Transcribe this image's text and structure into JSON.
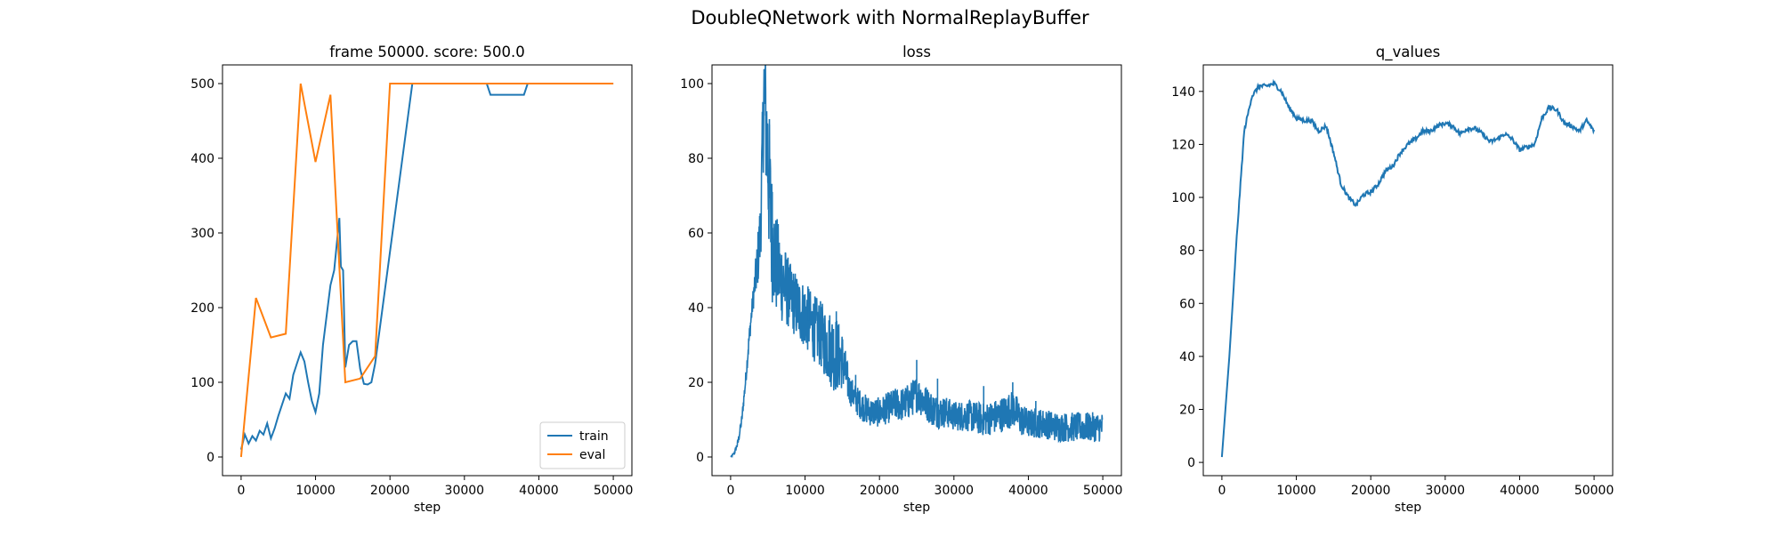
{
  "figure": {
    "suptitle": "DoubleQNetwork with NormalReplayBuffer"
  },
  "colors": {
    "train": "#1f77b4",
    "eval": "#ff7f0e",
    "loss": "#1f77b4",
    "q_values": "#1f77b4"
  },
  "chart_data": [
    {
      "type": "line",
      "title": "frame 50000. score: 500.0",
      "xlabel": "step",
      "ylabel": "",
      "xlim": [
        -2500,
        52500
      ],
      "ylim": [
        -25,
        525
      ],
      "xticks": [
        0,
        10000,
        20000,
        30000,
        40000,
        50000
      ],
      "yticks": [
        0,
        100,
        200,
        300,
        400,
        500
      ],
      "grid": false,
      "legend": {
        "placement": "lower-right"
      },
      "series": [
        {
          "name": "train",
          "color": "#1f77b4",
          "points": [
            [
              0,
              10
            ],
            [
              500,
              30
            ],
            [
              1000,
              18
            ],
            [
              1500,
              28
            ],
            [
              2000,
              22
            ],
            [
              2500,
              35
            ],
            [
              3000,
              30
            ],
            [
              3500,
              45
            ],
            [
              4000,
              25
            ],
            [
              4500,
              38
            ],
            [
              5000,
              55
            ],
            [
              5500,
              70
            ],
            [
              6000,
              85
            ],
            [
              6500,
              78
            ],
            [
              7000,
              110
            ],
            [
              7500,
              125
            ],
            [
              8000,
              140
            ],
            [
              8500,
              128
            ],
            [
              9000,
              100
            ],
            [
              9500,
              75
            ],
            [
              10000,
              60
            ],
            [
              10500,
              85
            ],
            [
              11000,
              150
            ],
            [
              11500,
              190
            ],
            [
              12000,
              230
            ],
            [
              12500,
              250
            ],
            [
              13000,
              300
            ],
            [
              13200,
              320
            ],
            [
              13400,
              255
            ],
            [
              13700,
              250
            ],
            [
              14000,
              120
            ],
            [
              14500,
              150
            ],
            [
              15000,
              155
            ],
            [
              15500,
              155
            ],
            [
              16000,
              118
            ],
            [
              16500,
              98
            ],
            [
              17000,
              97
            ],
            [
              17500,
              100
            ],
            [
              18000,
              125
            ],
            [
              23000,
              500
            ],
            [
              33000,
              500
            ],
            [
              33500,
              485
            ],
            [
              38000,
              485
            ],
            [
              38500,
              500
            ],
            [
              50000,
              500
            ]
          ]
        },
        {
          "name": "eval",
          "color": "#ff7f0e",
          "points": [
            [
              0,
              0
            ],
            [
              2000,
              213
            ],
            [
              4000,
              160
            ],
            [
              6000,
              165
            ],
            [
              8000,
              500
            ],
            [
              10000,
              395
            ],
            [
              12000,
              485
            ],
            [
              14000,
              100
            ],
            [
              16000,
              105
            ],
            [
              18000,
              135
            ],
            [
              20000,
              500
            ],
            [
              50000,
              500
            ]
          ]
        }
      ]
    },
    {
      "type": "line",
      "title": "loss",
      "xlabel": "step",
      "ylabel": "",
      "xlim": [
        -2500,
        52500
      ],
      "ylim": [
        -5,
        105
      ],
      "xticks": [
        0,
        10000,
        20000,
        30000,
        40000,
        50000
      ],
      "yticks": [
        0,
        20,
        40,
        60,
        80,
        100
      ],
      "grid": false,
      "series": [
        {
          "color": "#1f77b4",
          "points": [
            [
              0,
              0
            ],
            [
              500,
              1
            ],
            [
              1000,
              4
            ],
            [
              1500,
              10
            ],
            [
              2000,
              20
            ],
            [
              2500,
              32
            ],
            [
              3000,
              42
            ],
            [
              3500,
              50
            ],
            [
              4000,
              60
            ],
            [
              4500,
              99
            ],
            [
              5000,
              80
            ],
            [
              5500,
              60
            ],
            [
              6000,
              52
            ],
            [
              7000,
              47
            ],
            [
              8000,
              43
            ],
            [
              9000,
              40
            ],
            [
              10000,
              38
            ],
            [
              11000,
              35
            ],
            [
              12000,
              33
            ],
            [
              13000,
              30
            ],
            [
              14000,
              28
            ],
            [
              15000,
              26
            ],
            [
              15500,
              22
            ],
            [
              16000,
              18
            ],
            [
              17000,
              15
            ],
            [
              18000,
              13
            ],
            [
              19000,
              12
            ],
            [
              20000,
              12
            ],
            [
              21000,
              13
            ],
            [
              22000,
              14
            ],
            [
              23000,
              14
            ],
            [
              24000,
              15
            ],
            [
              25000,
              17
            ],
            [
              26000,
              15
            ],
            [
              27000,
              13
            ],
            [
              28000,
              12
            ],
            [
              29000,
              12
            ],
            [
              30000,
              11
            ],
            [
              32000,
              11
            ],
            [
              34000,
              10
            ],
            [
              36000,
              11
            ],
            [
              37000,
              12
            ],
            [
              38000,
              13
            ],
            [
              39000,
              10
            ],
            [
              40000,
              9
            ],
            [
              42000,
              9
            ],
            [
              44000,
              8
            ],
            [
              46000,
              8
            ],
            [
              48000,
              8
            ],
            [
              50000,
              8
            ]
          ],
          "noise": [
            [
              0,
              0
            ],
            [
              3000,
              3
            ],
            [
              4000,
              10
            ],
            [
              5000,
              22
            ],
            [
              6000,
              14
            ],
            [
              8000,
              9
            ],
            [
              10000,
              9
            ],
            [
              12000,
              9
            ],
            [
              14000,
              11
            ],
            [
              15000,
              8
            ],
            [
              16000,
              4
            ],
            [
              20000,
              4
            ],
            [
              25000,
              5
            ],
            [
              30000,
              4
            ],
            [
              38000,
              5
            ],
            [
              40000,
              4
            ],
            [
              50000,
              4
            ]
          ],
          "spikes": [
            [
              4700,
              99
            ],
            [
              4500,
              96
            ],
            [
              5200,
              89
            ],
            [
              4800,
              91
            ],
            [
              5600,
              71
            ],
            [
              6200,
              60
            ],
            [
              6700,
              52
            ],
            [
              10500,
              45
            ],
            [
              14200,
              39
            ],
            [
              16800,
              22
            ],
            [
              25000,
              26
            ],
            [
              27800,
              21
            ],
            [
              34000,
              19
            ],
            [
              37900,
              20
            ],
            [
              41000,
              15
            ]
          ]
        }
      ]
    },
    {
      "type": "line",
      "title": "q_values",
      "xlabel": "step",
      "ylabel": "",
      "xlim": [
        -2500,
        52500
      ],
      "ylim": [
        -5,
        150
      ],
      "xticks": [
        0,
        10000,
        20000,
        30000,
        40000,
        50000
      ],
      "yticks": [
        0,
        20,
        40,
        60,
        80,
        100,
        120,
        140
      ],
      "grid": false,
      "series": [
        {
          "color": "#1f77b4",
          "points": [
            [
              0,
              2
            ],
            [
              1000,
              40
            ],
            [
              2000,
              85
            ],
            [
              3000,
              125
            ],
            [
              4000,
              138
            ],
            [
              5000,
              142
            ],
            [
              6000,
              142
            ],
            [
              7000,
              143
            ],
            [
              8000,
              140
            ],
            [
              9000,
              134
            ],
            [
              10000,
              130
            ],
            [
              11000,
              129
            ],
            [
              12000,
              129
            ],
            [
              13000,
              125
            ],
            [
              14000,
              127
            ],
            [
              15000,
              117
            ],
            [
              16000,
              105
            ],
            [
              17000,
              100
            ],
            [
              18000,
              97
            ],
            [
              19000,
              101
            ],
            [
              20000,
              102
            ],
            [
              21000,
              105
            ],
            [
              22000,
              110
            ],
            [
              23000,
              112
            ],
            [
              24000,
              117
            ],
            [
              25000,
              120
            ],
            [
              26000,
              122
            ],
            [
              27000,
              125
            ],
            [
              28000,
              125
            ],
            [
              29000,
              127
            ],
            [
              30000,
              128
            ],
            [
              31000,
              127
            ],
            [
              32000,
              124
            ],
            [
              33000,
              126
            ],
            [
              34000,
              126
            ],
            [
              35000,
              124
            ],
            [
              36000,
              121
            ],
            [
              37000,
              122
            ],
            [
              38000,
              124
            ],
            [
              39000,
              122
            ],
            [
              40000,
              118
            ],
            [
              41000,
              119
            ],
            [
              42000,
              120
            ],
            [
              43000,
              130
            ],
            [
              44000,
              134
            ],
            [
              45000,
              133
            ],
            [
              46000,
              128
            ],
            [
              47000,
              127
            ],
            [
              48000,
              125
            ],
            [
              49000,
              129
            ],
            [
              50000,
              125
            ]
          ]
        }
      ]
    }
  ]
}
